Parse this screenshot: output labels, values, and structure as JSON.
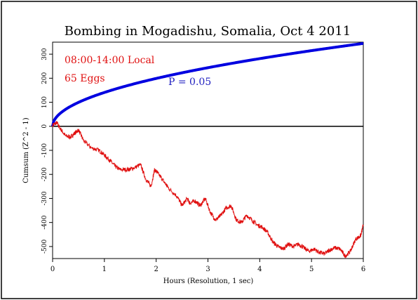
{
  "chart_data": {
    "type": "line",
    "title": "Bombing in Mogadishu, Somalia, Oct 4 2011",
    "xlabel": "Hours (Resolution, 1 sec)",
    "ylabel": "Cumsum (Z^2 - 1)",
    "xlim": [
      0,
      6
    ],
    "ylim": [
      -550,
      350
    ],
    "xticks": [
      0,
      1,
      2,
      3,
      4,
      5,
      6
    ],
    "yticks": [
      -500,
      -400,
      -300,
      -200,
      -100,
      0,
      100,
      200,
      300
    ],
    "annotations": {
      "time_window": "08:00-14:00 Local",
      "eggs": "65 Eggs",
      "p_value": "P = 0.05"
    },
    "colors": {
      "cumsum": "#e01010",
      "envelope": "#0000e0",
      "zero_line": "#000000",
      "annotation_red": "#e01010",
      "annotation_blue": "#2020c0"
    },
    "series": [
      {
        "key": "cumsum",
        "x": [
          0,
          0.08,
          0.15,
          0.25,
          0.35,
          0.42,
          0.5,
          0.6,
          0.75,
          0.9,
          1.0,
          1.1,
          1.2,
          1.3,
          1.45,
          1.55,
          1.7,
          1.8,
          1.9,
          1.97,
          2.05,
          2.15,
          2.25,
          2.4,
          2.5,
          2.6,
          2.65,
          2.75,
          2.85,
          2.95,
          3.05,
          3.15,
          3.25,
          3.35,
          3.45,
          3.55,
          3.65,
          3.75,
          3.85,
          3.95,
          4.05,
          4.15,
          4.25,
          4.35,
          4.45,
          4.55,
          4.65,
          4.75,
          4.85,
          4.95,
          5.05,
          5.15,
          5.25,
          5.35,
          5.45,
          5.55,
          5.65,
          5.75,
          5.85,
          5.95,
          6.0
        ],
        "y": [
          5,
          15,
          -10,
          -40,
          -45,
          -30,
          -15,
          -60,
          -90,
          -100,
          -120,
          -140,
          -165,
          -180,
          -180,
          -175,
          -160,
          -220,
          -250,
          -180,
          -200,
          -230,
          -260,
          -290,
          -330,
          -300,
          -320,
          -310,
          -330,
          -300,
          -360,
          -390,
          -370,
          -340,
          -330,
          -390,
          -400,
          -370,
          -390,
          -410,
          -420,
          -440,
          -480,
          -500,
          -510,
          -490,
          -500,
          -490,
          -505,
          -520,
          -510,
          -525,
          -530,
          -515,
          -505,
          -510,
          -540,
          -520,
          -470,
          -455,
          -410
        ]
      }
    ]
  }
}
